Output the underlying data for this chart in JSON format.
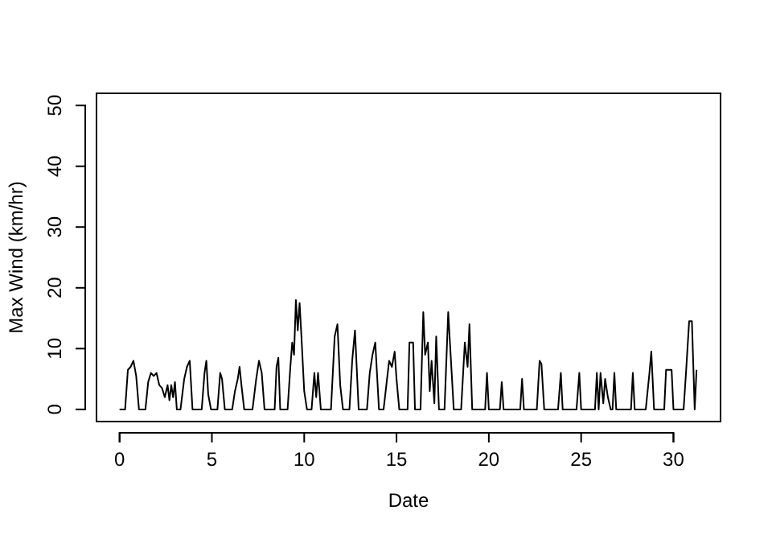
{
  "chart_data": {
    "type": "line",
    "xlabel": "Date",
    "ylabel": "Max Wind (km/hr)",
    "xlim": [
      -1.25,
      32.55
    ],
    "ylim": [
      -2,
      52
    ],
    "xticks": [
      0,
      5,
      10,
      15,
      20,
      25,
      30
    ],
    "yticks": [
      0,
      10,
      20,
      30,
      40,
      50
    ],
    "grid": false,
    "marker": "none",
    "line_style": "solid",
    "series": [
      {
        "color": "#000000",
        "x": [
          0,
          0.3,
          0.45,
          0.6,
          0.75,
          0.9,
          1.05,
          1.4,
          1.55,
          1.7,
          1.85,
          2.0,
          2.15,
          2.3,
          2.45,
          2.6,
          2.7,
          2.8,
          2.9,
          3.0,
          3.1,
          3.3,
          3.5,
          3.65,
          3.8,
          3.95,
          4.45,
          4.6,
          4.7,
          4.8,
          4.95,
          5.3,
          5.45,
          5.55,
          5.7,
          6.1,
          6.25,
          6.4,
          6.5,
          6.6,
          6.75,
          7.2,
          7.4,
          7.55,
          7.7,
          7.85,
          8.4,
          8.5,
          8.6,
          8.7,
          9.1,
          9.25,
          9.35,
          9.45,
          9.55,
          9.65,
          9.75,
          9.85,
          10.0,
          10.15,
          10.4,
          10.55,
          10.65,
          10.75,
          10.9,
          11.45,
          11.65,
          11.8,
          11.95,
          12.1,
          12.45,
          12.6,
          12.75,
          12.95,
          13.4,
          13.55,
          13.7,
          13.85,
          14.05,
          14.3,
          14.45,
          14.6,
          14.75,
          14.9,
          15.0,
          15.15,
          15.6,
          15.7,
          15.9,
          16.0,
          16.3,
          16.45,
          16.55,
          16.7,
          16.8,
          16.9,
          17.05,
          17.15,
          17.3,
          17.6,
          17.8,
          17.95,
          18.1,
          18.5,
          18.7,
          18.85,
          18.95,
          19.1,
          19.8,
          19.9,
          20.0,
          20.6,
          20.7,
          20.8,
          21.7,
          21.8,
          21.9,
          22.6,
          22.75,
          22.85,
          23.0,
          23.75,
          23.9,
          24.0,
          24.75,
          24.9,
          25.0,
          25.75,
          25.85,
          25.95,
          26.05,
          26.2,
          26.3,
          26.45,
          26.6,
          26.7,
          26.8,
          26.9,
          27.7,
          27.8,
          27.9,
          28.5,
          28.7,
          28.8,
          28.95,
          29.5,
          29.6,
          29.9,
          30.0,
          30.55,
          30.7,
          30.85,
          31.0,
          31.15,
          31.25
        ],
        "values": [
          0,
          0,
          6.5,
          7,
          8,
          5.5,
          0,
          0,
          4.5,
          6,
          5.5,
          6,
          4,
          3.5,
          2,
          4,
          1.5,
          4,
          2,
          4.5,
          0,
          0,
          5,
          7,
          8,
          0,
          0,
          6,
          8,
          2.5,
          0,
          0,
          6,
          5,
          0,
          0,
          3,
          5,
          7,
          4,
          0,
          0,
          5,
          8,
          6,
          0,
          0,
          7,
          8.5,
          0,
          0,
          7,
          11,
          9,
          18,
          13,
          17.5,
          12,
          3,
          0,
          0,
          6,
          2,
          6,
          0,
          0,
          12,
          14,
          4,
          0,
          0,
          8,
          13,
          0,
          0,
          6,
          9,
          11,
          0,
          0,
          4,
          8,
          7,
          9.5,
          5,
          0,
          0,
          11,
          11,
          0,
          0,
          16,
          9,
          11,
          3,
          8,
          1,
          12,
          0,
          0,
          16,
          8,
          0,
          0,
          11,
          7,
          14,
          0,
          0,
          6,
          0,
          0,
          4.5,
          0,
          0,
          5,
          0,
          0,
          8,
          7.5,
          0,
          0,
          6,
          0,
          0,
          6,
          0,
          0,
          6,
          0,
          6,
          1,
          5,
          2,
          0,
          0,
          6,
          0,
          0,
          6,
          0,
          0,
          6,
          9.5,
          0,
          0,
          6.5,
          6.5,
          0,
          0,
          7,
          14.5,
          14.5,
          0,
          6.5
        ]
      }
    ]
  }
}
